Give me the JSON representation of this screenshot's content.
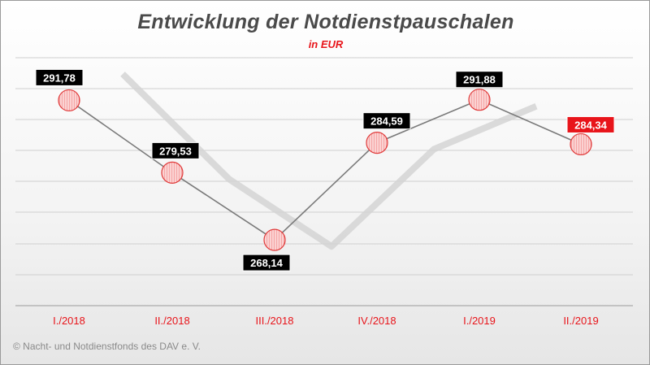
{
  "header": {
    "title": "Entwicklung der Notdienstpauschalen",
    "subtitle": "in EUR"
  },
  "footer": {
    "copyright": "© Nacht- und Notdienstfonds des DAV e. V."
  },
  "colors": {
    "title": "#4a4a4a",
    "accent_red": "#e8141a",
    "label_box": "#000000",
    "highlight_box": "#e8141a",
    "line": "#7a7a7a",
    "marker_fill": "#f7b5b5",
    "marker_stroke": "#e03a3a"
  },
  "chart_data": {
    "type": "line",
    "title": "Entwicklung der Notdienstpauschalen",
    "subtitle": "in EUR",
    "xlabel": "",
    "ylabel": "",
    "categories": [
      "I./2018",
      "II./2018",
      "III./2018",
      "IV./2018",
      "I./2019",
      "II./2019"
    ],
    "values": [
      291.78,
      279.53,
      268.14,
      284.59,
      291.88,
      284.34
    ],
    "data_labels": [
      "291,78",
      "279,53",
      "268,14",
      "284,59",
      "291,88",
      "284,34"
    ],
    "highlight_index": 5,
    "ylim": [
      257,
      299
    ],
    "grid": true,
    "legend": "none"
  }
}
